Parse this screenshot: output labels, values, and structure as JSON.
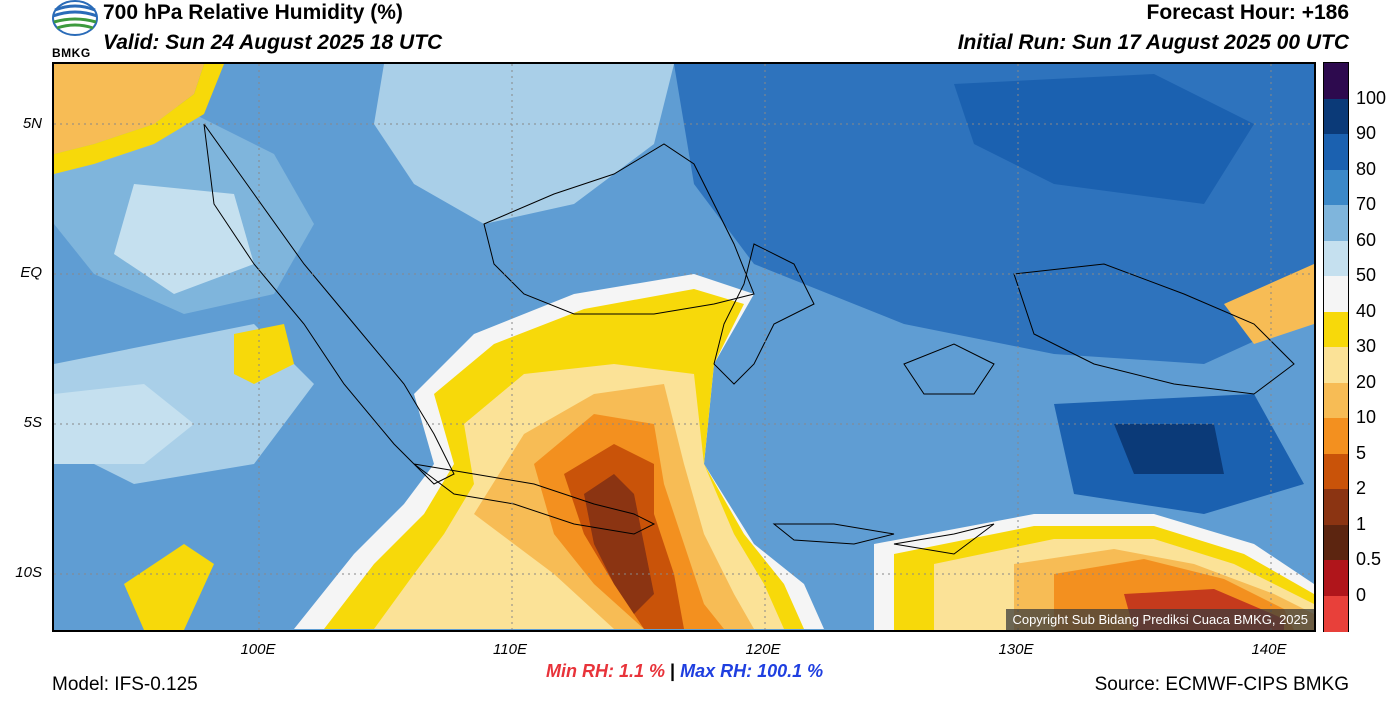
{
  "header": {
    "title": "700 hPa Relative Humidity (%)",
    "valid": "Valid: Sun 24 August 2025 18 UTC",
    "forecast_hour": "Forecast Hour: +186",
    "initial_run": "Initial Run: Sun 17 August 2025 00 UTC"
  },
  "logo": {
    "text": "BMKG"
  },
  "map": {
    "lat_labels": [
      "5N",
      "EQ",
      "5S",
      "10S"
    ],
    "lon_labels": [
      "100E",
      "110E",
      "120E",
      "130E",
      "140E"
    ],
    "copyright": "Copyright Sub Bidang Prediksi Cuaca BMKG, 2025"
  },
  "stats": {
    "min": "Min RH:   1.1 %",
    "separator": "|",
    "max": "Max RH: 100.1 %"
  },
  "footer": {
    "model": "Model: IFS-0.125",
    "source": "Source: ECMWF-CIPS BMKG"
  },
  "colorbar": {
    "labels": [
      "100",
      "90",
      "80",
      "70",
      "60",
      "50",
      "40",
      "30",
      "20",
      "10",
      "5",
      "2",
      "1",
      "0.5",
      "0"
    ],
    "colors": [
      "#2d0a4e",
      "#0b3a78",
      "#1b61b0",
      "#3b88c8",
      "#7fb5dc",
      "#c5e0ef",
      "#f5f5f5",
      "#f7d90a",
      "#fbe297",
      "#f7bc55",
      "#f3901f",
      "#c95309",
      "#8b3412",
      "#5c2510",
      "#b0151b",
      "#e8403a"
    ]
  }
}
